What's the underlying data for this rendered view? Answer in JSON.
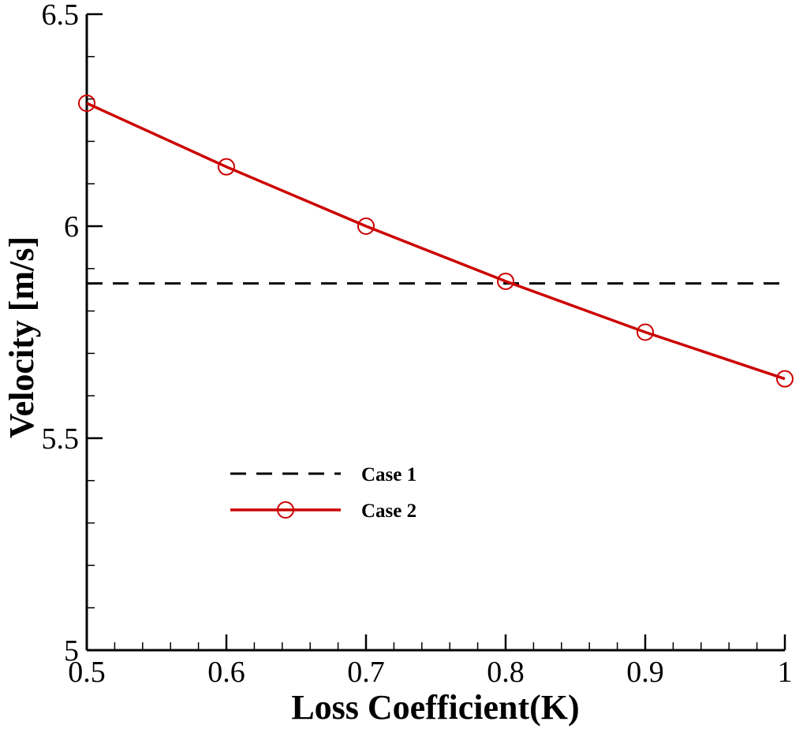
{
  "chart_data": {
    "type": "line",
    "title": "",
    "xlabel": "Loss Coefficient(K)",
    "ylabel": "Velocity [m/s]",
    "xlim": [
      0.5,
      1.0
    ],
    "ylim": [
      5.0,
      6.5
    ],
    "x_major_ticks": [
      0.5,
      0.6,
      0.7,
      0.8,
      0.9,
      1.0
    ],
    "x_tick_labels": [
      "0.5",
      "0.6",
      "0.7",
      "0.8",
      "0.9",
      "1"
    ],
    "y_major_ticks": [
      5.0,
      5.5,
      6.0,
      6.5
    ],
    "y_tick_labels": [
      "5",
      "5.5",
      "6",
      "6.5"
    ],
    "x_minor_step": 0.02,
    "y_minor_step": 0.1,
    "grid": false,
    "legend_position": "lower-left",
    "series": [
      {
        "name": "Case 1",
        "style": "dashed",
        "color": "#000000",
        "marker": "none",
        "x": [
          0.5,
          1.0
        ],
        "values": [
          5.865,
          5.865
        ]
      },
      {
        "name": "Case 2",
        "style": "solid",
        "color": "#cc0000",
        "marker": "circle",
        "x": [
          0.5,
          0.6,
          0.7,
          0.8,
          0.9,
          1.0
        ],
        "values": [
          6.29,
          6.14,
          6.0,
          5.87,
          5.75,
          5.64
        ]
      }
    ]
  }
}
